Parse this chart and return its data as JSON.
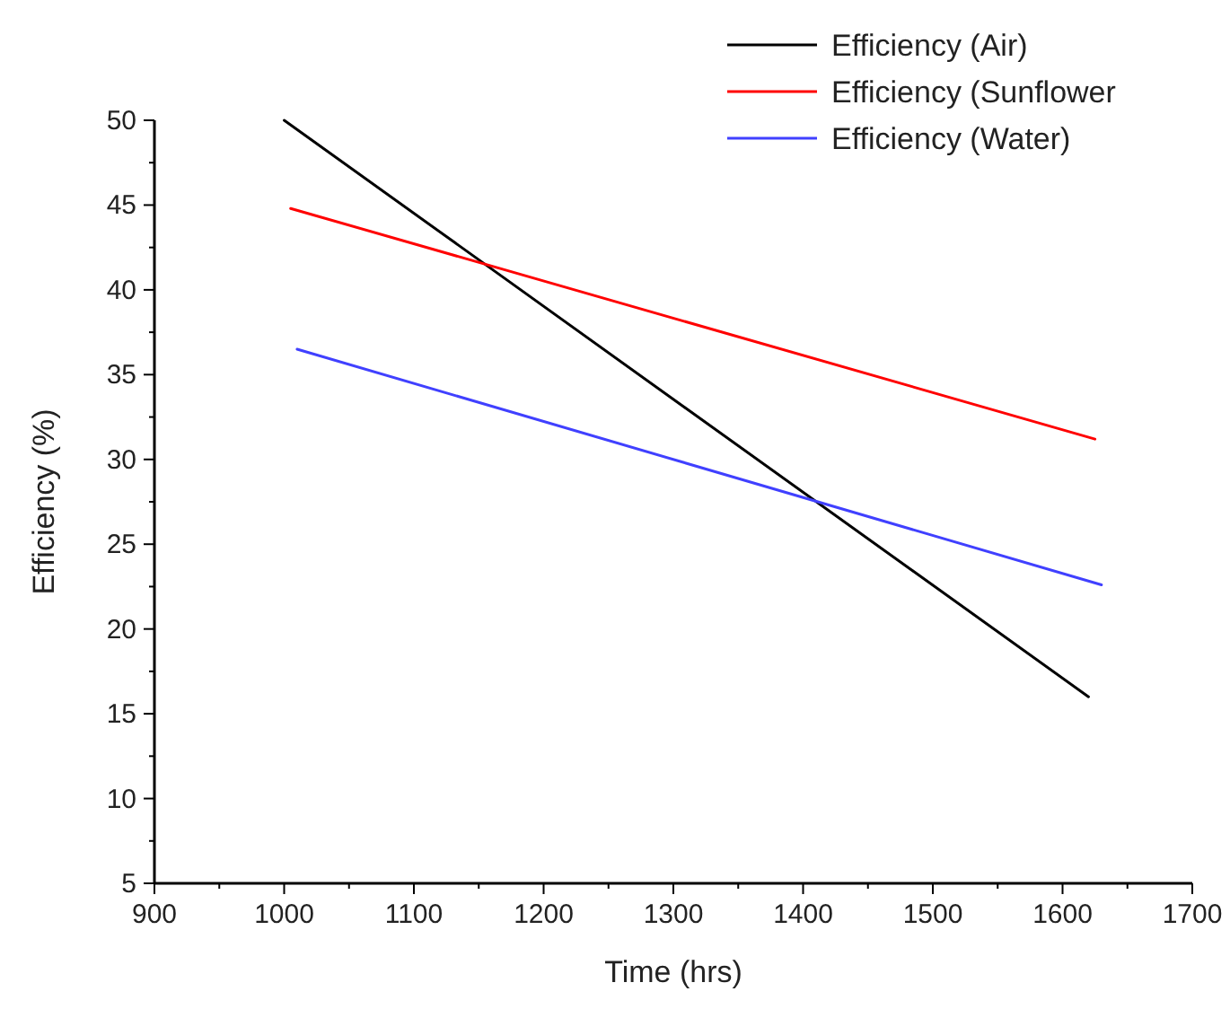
{
  "chart_data": {
    "type": "line",
    "xlabel": "Time (hrs)",
    "ylabel": "Efficiency (%)",
    "xlim": [
      900,
      1700
    ],
    "xticks": [
      900,
      1000,
      1100,
      1200,
      1300,
      1400,
      1500,
      1600,
      1700
    ],
    "ylim": [
      5,
      50
    ],
    "yticks": [
      5,
      10,
      15,
      20,
      25,
      30,
      35,
      40,
      45,
      50
    ],
    "grid": false,
    "legend": "top right",
    "marker": "none",
    "line_style": "solid",
    "series": [
      {
        "name": "Efficiency (Air)",
        "color": "#000000",
        "x": [
          1000,
          1620
        ],
        "values": [
          50,
          16
        ]
      },
      {
        "name": "Efficiency (Sunflower",
        "color": "#ff0000",
        "x": [
          1005,
          1625
        ],
        "values": [
          44.8,
          31.2
        ]
      },
      {
        "name": "Efficiency (Water)",
        "color": "#4040ff",
        "x": [
          1010,
          1630
        ],
        "values": [
          36.5,
          22.6
        ]
      }
    ]
  }
}
